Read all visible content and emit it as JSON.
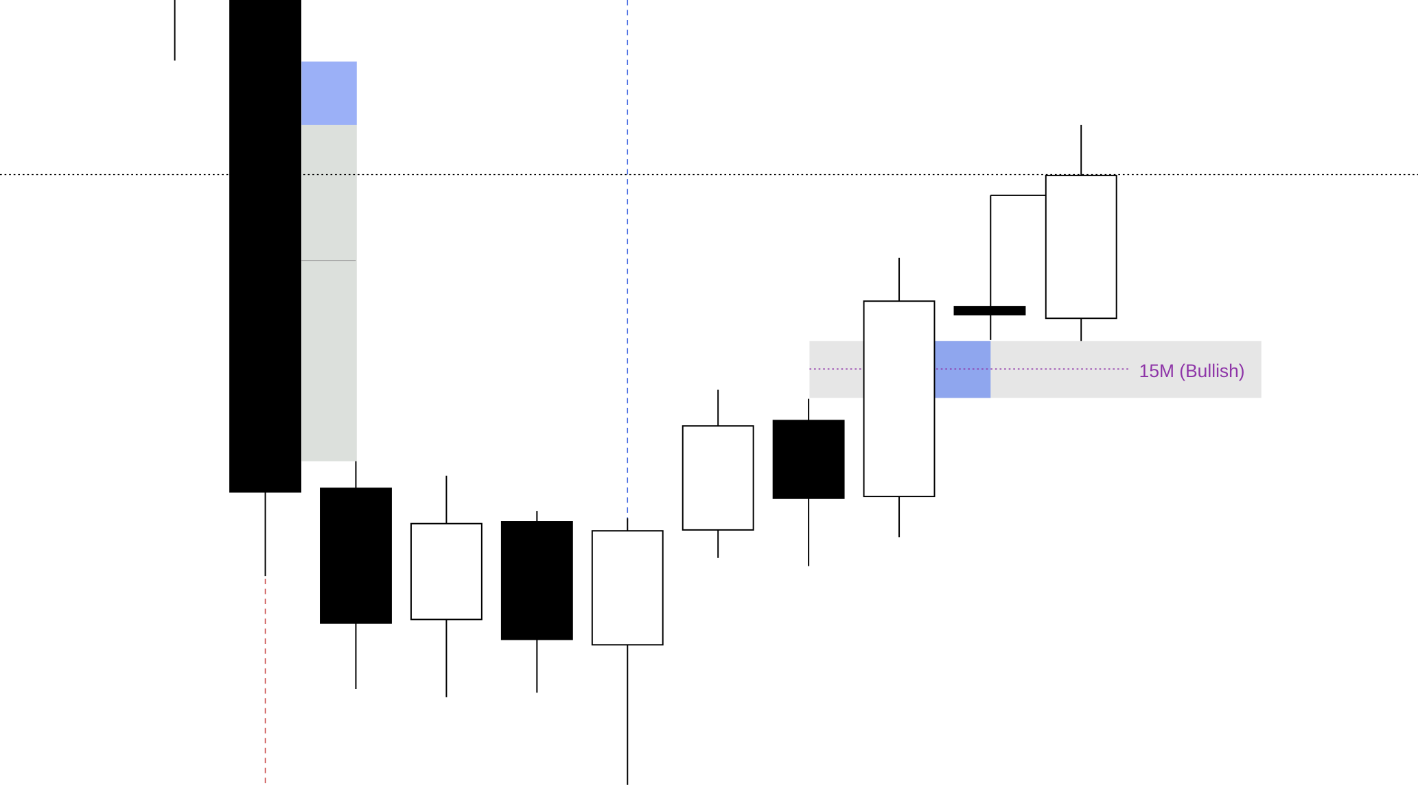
{
  "chart_data": {
    "type": "candlestick",
    "title": "",
    "xlabel": "",
    "ylabel": "",
    "grid": false,
    "candle_directions": [
      "unknown",
      "bearish",
      "bearish",
      "bullish",
      "bearish",
      "bullish",
      "bullish",
      "bearish",
      "bullish",
      "bearish",
      "bullish",
      "bullish"
    ],
    "annotations": {
      "zone_label": "15M (Bullish)"
    }
  },
  "colors": {
    "bullish_body": "#ffffff",
    "bearish_body": "#000000",
    "zone_blue": "#9bb0f7",
    "zone_blue_2": "#8fa6ee",
    "zone_gray": "#dce0dc",
    "band_gray": "#e6e6e6",
    "label_purple": "#8e35a8",
    "vline_blue": "#3d63e0",
    "vline_red": "#c94c4c"
  }
}
